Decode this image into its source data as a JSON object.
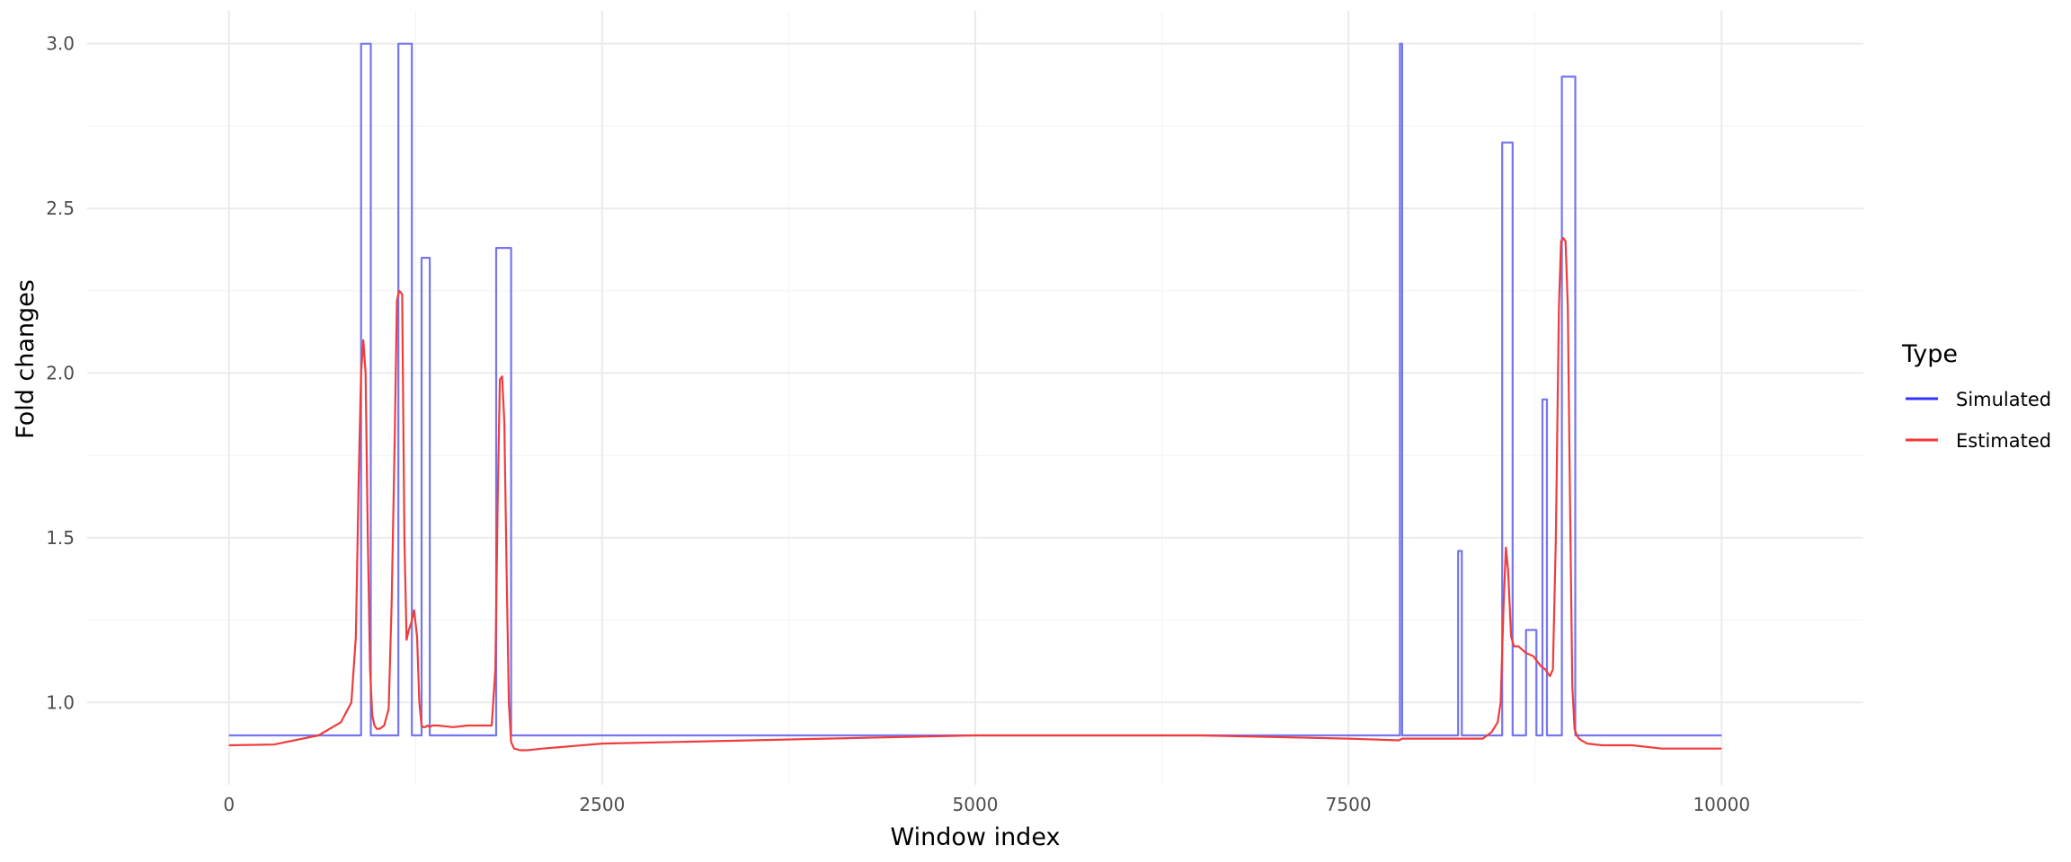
{
  "chart_data": {
    "type": "line",
    "xlabel": "Window index",
    "ylabel": "Fold changes",
    "xlim": [
      -950,
      10950
    ],
    "ylim": [
      0.75,
      3.1
    ],
    "x_ticks": [
      0,
      2500,
      5000,
      7500,
      10000
    ],
    "x_tick_labels": [
      "0",
      "2500",
      "5000",
      "7500",
      "10000"
    ],
    "y_ticks": [
      1.0,
      1.5,
      2.0,
      2.5,
      3.0
    ],
    "y_tick_labels": [
      "1.0",
      "1.5",
      "2.0",
      "2.5",
      "3.0"
    ],
    "grid": true,
    "legend": {
      "title": "Type",
      "position": "right",
      "entries": [
        "Simulated",
        "Estimated"
      ]
    },
    "series": [
      {
        "name": "Simulated",
        "color": "#7575f0",
        "legend_color": "#3333ff",
        "step": true,
        "x": [
          0,
          885,
          885,
          950,
          950,
          1135,
          1135,
          1225,
          1225,
          1290,
          1290,
          1345,
          1345,
          1790,
          1790,
          1890,
          1890,
          7845,
          7845,
          7860,
          7860,
          8235,
          8235,
          8260,
          8260,
          8530,
          8530,
          8600,
          8600,
          8690,
          8690,
          8760,
          8760,
          8800,
          8800,
          8830,
          8830,
          8930,
          8930,
          9020,
          9020,
          10000
        ],
        "y": [
          0.9,
          0.9,
          3.0,
          3.0,
          0.9,
          0.9,
          3.0,
          3.0,
          0.9,
          0.9,
          2.35,
          2.35,
          0.9,
          0.9,
          2.38,
          2.38,
          0.9,
          0.9,
          3.0,
          3.0,
          0.9,
          0.9,
          1.46,
          1.46,
          0.9,
          0.9,
          2.7,
          2.7,
          0.9,
          0.9,
          1.22,
          1.22,
          0.9,
          0.9,
          1.92,
          1.92,
          0.9,
          0.9,
          2.9,
          2.9,
          0.9,
          0.9
        ]
      },
      {
        "name": "Estimated",
        "color": "#f03c3c",
        "legend_color": "#ff3333",
        "step": false,
        "x": [
          0,
          300,
          600,
          750,
          820,
          850,
          870,
          885,
          900,
          915,
          930,
          945,
          960,
          975,
          990,
          1010,
          1040,
          1070,
          1090,
          1110,
          1125,
          1140,
          1160,
          1175,
          1190,
          1205,
          1220,
          1240,
          1260,
          1275,
          1290,
          1300,
          1315,
          1330,
          1345,
          1360,
          1400,
          1500,
          1600,
          1700,
          1760,
          1785,
          1800,
          1815,
          1830,
          1845,
          1860,
          1875,
          1890,
          1910,
          1950,
          2000,
          2100,
          2500,
          3000,
          3500,
          4000,
          4500,
          5000,
          5500,
          6000,
          6500,
          7000,
          7500,
          7840,
          7860,
          8000,
          8300,
          8400,
          8460,
          8500,
          8520,
          8540,
          8555,
          8570,
          8590,
          8610,
          8640,
          8690,
          8740,
          8790,
          8820,
          8850,
          8870,
          8890,
          8910,
          8925,
          8940,
          8955,
          8970,
          8985,
          9000,
          9015,
          9030,
          9045,
          9060,
          9080,
          9100,
          9200,
          9400,
          9600,
          10000
        ],
        "y": [
          0.87,
          0.872,
          0.9,
          0.94,
          1.0,
          1.2,
          1.7,
          2.0,
          2.1,
          2.0,
          1.5,
          1.1,
          0.96,
          0.93,
          0.92,
          0.92,
          0.93,
          0.98,
          1.3,
          1.8,
          2.22,
          2.25,
          2.24,
          1.5,
          1.19,
          1.22,
          1.24,
          1.28,
          1.2,
          1.0,
          0.93,
          0.925,
          0.925,
          0.93,
          0.925,
          0.93,
          0.93,
          0.925,
          0.93,
          0.93,
          0.93,
          1.1,
          1.6,
          1.98,
          1.99,
          1.85,
          1.4,
          1.0,
          0.88,
          0.86,
          0.855,
          0.855,
          0.86,
          0.875,
          0.88,
          0.885,
          0.89,
          0.895,
          0.9,
          0.9,
          0.9,
          0.9,
          0.895,
          0.89,
          0.885,
          0.89,
          0.89,
          0.89,
          0.89,
          0.91,
          0.94,
          1.0,
          1.3,
          1.47,
          1.4,
          1.2,
          1.17,
          1.17,
          1.15,
          1.14,
          1.11,
          1.1,
          1.08,
          1.1,
          1.5,
          2.2,
          2.4,
          2.41,
          2.4,
          2.2,
          1.6,
          1.05,
          0.92,
          0.9,
          0.89,
          0.885,
          0.88,
          0.875,
          0.87,
          0.87,
          0.86,
          0.86
        ]
      }
    ]
  }
}
